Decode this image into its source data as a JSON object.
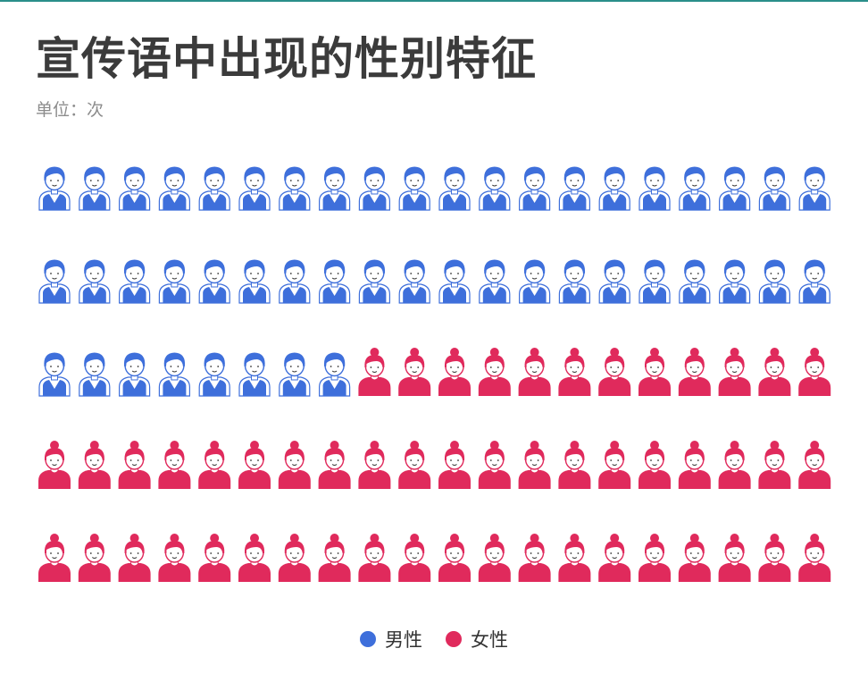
{
  "title": "宣传语中出现的性别特征",
  "subtitle": "单位：次",
  "colors": {
    "male": "#3e6fdb",
    "female": "#e02a5c"
  },
  "legend": {
    "male_label": "男性",
    "female_label": "女性"
  },
  "chart_data": {
    "type": "pictogram",
    "title": "宣传语中出现的性别特征",
    "unit": "单位：次",
    "grid": {
      "rows": 5,
      "columns": 20
    },
    "series": [
      {
        "name": "男性",
        "value": 48,
        "color": "#3e6fdb",
        "icon": "male-person-icon"
      },
      {
        "name": "女性",
        "value": 52,
        "color": "#e02a5c",
        "icon": "female-person-icon"
      }
    ],
    "legend_position": "bottom-center"
  }
}
